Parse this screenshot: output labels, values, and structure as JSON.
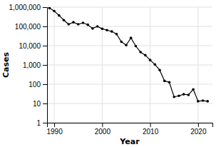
{
  "chart_data": {
    "type": "line",
    "xlabel": "Year",
    "ylabel": "Cases",
    "x": [
      1989,
      1990,
      1991,
      1992,
      1993,
      1994,
      1995,
      1996,
      1997,
      1998,
      1999,
      2000,
      2001,
      2002,
      2003,
      2004,
      2005,
      2006,
      2007,
      2008,
      2009,
      2010,
      2011,
      2012,
      2013,
      2014,
      2015,
      2016,
      2017,
      2018,
      2019,
      2020,
      2021,
      2022
    ],
    "values": [
      892000,
      623000,
      370000,
      210000,
      129000,
      165000,
      129000,
      153000,
      122000,
      78000,
      100000,
      75000,
      63717,
      54638,
      40000,
      16026,
      10674,
      25217,
      9585,
      4619,
      3190,
      1797,
      1058,
      542,
      148,
      126,
      22,
      25,
      30,
      28,
      54,
      13,
      14,
      13
    ],
    "color": "#000000",
    "marker": "circle",
    "log": "y",
    "grid": true,
    "xlim": [
      1988.5,
      2023
    ],
    "xticks": [
      1990,
      2000,
      2010,
      2020
    ],
    "ylim": [
      1,
      1000000
    ],
    "yticks": [
      1,
      10,
      100,
      {
        "value": 1000,
        "label": "1,000"
      },
      {
        "value": 10000,
        "label": "10,000"
      },
      {
        "value": 100000,
        "label": "100,000"
      },
      {
        "value": 1000000,
        "label": "1,000,000"
      }
    ]
  }
}
